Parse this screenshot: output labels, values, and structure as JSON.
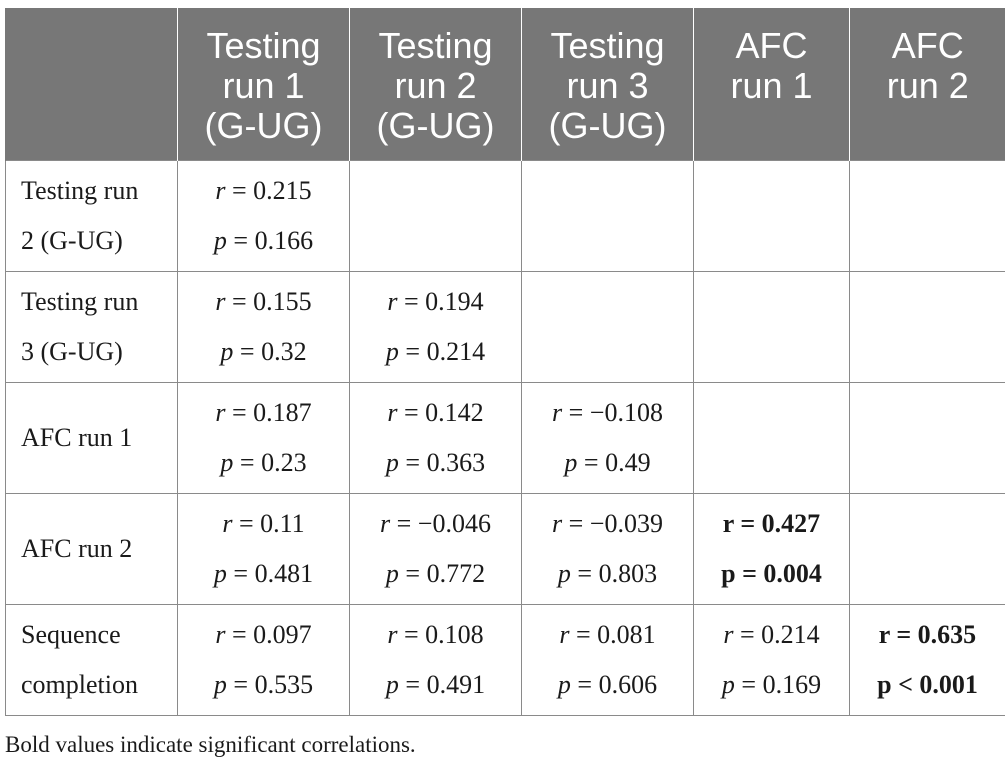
{
  "headers": [
    {
      "lines": [
        "",
        "",
        ""
      ]
    },
    {
      "lines": [
        "Testing",
        "run 1",
        "(G-UG)"
      ]
    },
    {
      "lines": [
        "Testing",
        "run 2",
        "(G-UG)"
      ]
    },
    {
      "lines": [
        "Testing",
        "run 3",
        "(G-UG)"
      ]
    },
    {
      "lines": [
        "AFC",
        "run 1",
        ""
      ]
    },
    {
      "lines": [
        "AFC",
        "run 2",
        ""
      ]
    }
  ],
  "rows": [
    {
      "label": [
        "Testing run",
        "2 (G-UG)"
      ],
      "cells": [
        {
          "r": "r = 0.215",
          "p": "p = 0.166",
          "sig": false
        },
        null,
        null,
        null,
        null
      ]
    },
    {
      "label": [
        "Testing run",
        "3 (G-UG)"
      ],
      "cells": [
        {
          "r": "r = 0.155",
          "p": "p = 0.32",
          "sig": false
        },
        {
          "r": "r = 0.194",
          "p": "p = 0.214",
          "sig": false
        },
        null,
        null,
        null
      ]
    },
    {
      "label": [
        "AFC run 1",
        ""
      ],
      "cells": [
        {
          "r": "r = 0.187",
          "p": "p = 0.23",
          "sig": false
        },
        {
          "r": "r = 0.142",
          "p": "p = 0.363",
          "sig": false
        },
        {
          "r": "r = −0.108",
          "p": "p = 0.49",
          "sig": false
        },
        null,
        null
      ]
    },
    {
      "label": [
        "AFC run 2",
        ""
      ],
      "cells": [
        {
          "r": "r = 0.11",
          "p": "p = 0.481",
          "sig": false
        },
        {
          "r": "r = −0.046",
          "p": "p = 0.772",
          "sig": false
        },
        {
          "r": "r = −0.039",
          "p": "p = 0.803",
          "sig": false
        },
        {
          "r": "r = 0.427",
          "p": "p = 0.004",
          "sig": true
        },
        null
      ]
    },
    {
      "label": [
        "Sequence",
        "completion"
      ],
      "cells": [
        {
          "r": "r = 0.097",
          "p": "p = 0.535",
          "sig": false
        },
        {
          "r": "r = 0.108",
          "p": "p = 0.491",
          "sig": false
        },
        {
          "r": "r = 0.081",
          "p": "p = 0.606",
          "sig": false
        },
        {
          "r": "r = 0.214",
          "p": "p = 0.169",
          "sig": false
        },
        {
          "r": "r = 0.635",
          "p": "p < 0.001",
          "sig": true
        }
      ]
    }
  ],
  "footnote": "Bold values indicate significant correlations."
}
